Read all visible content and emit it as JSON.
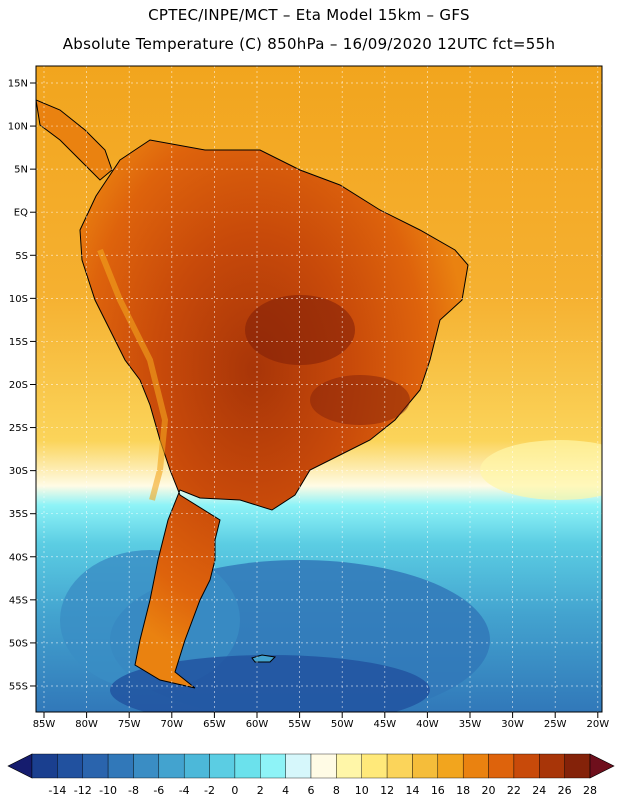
{
  "header": {
    "line1": "CPTEC/INPE/MCT –  Eta Model 15km – GFS",
    "line2": "Absolute Temperature (C) 850hPa – 16/09/2020 12UTC fct=55h"
  },
  "axes": {
    "lat_labels": [
      "15N",
      "10N",
      "5N",
      "EQ",
      "5S",
      "10S",
      "15S",
      "20S",
      "25S",
      "30S",
      "35S",
      "40S",
      "45S",
      "50S",
      "55S"
    ],
    "lon_labels": [
      "85W",
      "80W",
      "75W",
      "70W",
      "65W",
      "60W",
      "55W",
      "50W",
      "45W",
      "40W",
      "35W",
      "30W",
      "25W",
      "20W"
    ]
  },
  "colorbar": {
    "labels": [
      "-14",
      "-12",
      "-10",
      "-8",
      "-6",
      "-4",
      "-2",
      "0",
      "2",
      "4",
      "6",
      "8",
      "10",
      "12",
      "14",
      "16",
      "18",
      "20",
      "22",
      "24",
      "26",
      "28"
    ],
    "colors": [
      "#1a3f8f",
      "#21519f",
      "#2a64ad",
      "#3178b9",
      "#3a8dc4",
      "#43a3cf",
      "#4cb8d9",
      "#5bcde3",
      "#6be1ec",
      "#8ef3f7",
      "#d6f7fb",
      "#fffbe5",
      "#fff6a8",
      "#ffe97a",
      "#fbd45a",
      "#f5bd3a",
      "#f2a51e",
      "#ea8210",
      "#de630c",
      "#c84a0a",
      "#a83508",
      "#842209"
    ],
    "arrow_left_color": "#151c6e",
    "arrow_right_color": "#6e0f1c"
  },
  "map": {
    "ocean_north_color": "#f2a51e",
    "ocean_south_color": "#4cb8d9",
    "land_hot_color": "#c84a0a",
    "grid_color": "#ffffff",
    "coast_color": "#000000"
  }
}
